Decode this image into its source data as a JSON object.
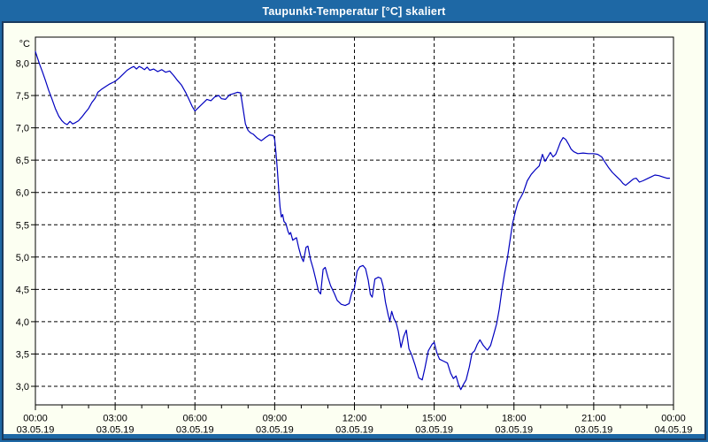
{
  "window": {
    "title": "Taupunkt-Temperatur [°C] skaliert",
    "titlebar_color": "#1e68a5",
    "frame_inner_color": "#1a3a5e",
    "background_color": "#fcfff2"
  },
  "chart_data": {
    "type": "line",
    "title": "Taupunkt-Temperatur [°C] skaliert",
    "y_unit_label": "°C",
    "line_color": "#0000bf",
    "plot_background": "#ffffff",
    "grid_style": "dashed",
    "grid_color": "#000000",
    "ylim": [
      2.71,
      8.4
    ],
    "xlim_hours": [
      0,
      24
    ],
    "y_ticks": [
      {
        "value": 8.0,
        "label": "8,0"
      },
      {
        "value": 7.5,
        "label": "7,5"
      },
      {
        "value": 7.0,
        "label": "7,0"
      },
      {
        "value": 6.5,
        "label": "6,5"
      },
      {
        "value": 6.0,
        "label": "6,0"
      },
      {
        "value": 5.5,
        "label": "5,5"
      },
      {
        "value": 5.0,
        "label": "5,0"
      },
      {
        "value": 4.5,
        "label": "4,5"
      },
      {
        "value": 4.0,
        "label": "4,0"
      },
      {
        "value": 3.5,
        "label": "3,5"
      },
      {
        "value": 3.0,
        "label": "3,0"
      }
    ],
    "grid_hours": [
      3,
      6,
      9,
      12,
      15,
      18,
      21
    ],
    "minor_tick_every_hours": 1,
    "x_ticks": [
      {
        "hour": 0,
        "time": "00:00",
        "date": "03.05.19"
      },
      {
        "hour": 3,
        "time": "03:00",
        "date": "03.05.19"
      },
      {
        "hour": 6,
        "time": "06:00",
        "date": "03.05.19"
      },
      {
        "hour": 9,
        "time": "09:00",
        "date": "03.05.19"
      },
      {
        "hour": 12,
        "time": "12:00",
        "date": "03.05.19"
      },
      {
        "hour": 15,
        "time": "15:00",
        "date": "03.05.19"
      },
      {
        "hour": 18,
        "time": "18:00",
        "date": "03.05.19"
      },
      {
        "hour": 21,
        "time": "21:00",
        "date": "03.05.19"
      },
      {
        "hour": 24,
        "time": "00:00",
        "date": "04.05.19"
      }
    ],
    "series": [
      {
        "name": "Taupunkt-Temperatur",
        "points": [
          [
            0,
            8.18
          ],
          [
            0.08,
            8.08
          ],
          [
            0.17,
            7.97
          ],
          [
            0.27,
            7.86
          ],
          [
            0.38,
            7.73
          ],
          [
            0.5,
            7.58
          ],
          [
            0.62,
            7.45
          ],
          [
            0.75,
            7.3
          ],
          [
            0.88,
            7.18
          ],
          [
            1,
            7.11
          ],
          [
            1.1,
            7.07
          ],
          [
            1.2,
            7.05
          ],
          [
            1.3,
            7.1
          ],
          [
            1.4,
            7.06
          ],
          [
            1.5,
            7.08
          ],
          [
            1.62,
            7.11
          ],
          [
            1.75,
            7.17
          ],
          [
            1.88,
            7.24
          ],
          [
            2,
            7.3
          ],
          [
            2.12,
            7.39
          ],
          [
            2.25,
            7.46
          ],
          [
            2.35,
            7.55
          ],
          [
            2.5,
            7.6
          ],
          [
            2.65,
            7.64
          ],
          [
            2.8,
            7.68
          ],
          [
            3,
            7.72
          ],
          [
            3.15,
            7.77
          ],
          [
            3.3,
            7.83
          ],
          [
            3.45,
            7.89
          ],
          [
            3.6,
            7.93
          ],
          [
            3.7,
            7.95
          ],
          [
            3.8,
            7.91
          ],
          [
            3.9,
            7.95
          ],
          [
            4,
            7.93
          ],
          [
            4.1,
            7.9
          ],
          [
            4.2,
            7.94
          ],
          [
            4.3,
            7.89
          ],
          [
            4.45,
            7.91
          ],
          [
            4.6,
            7.87
          ],
          [
            4.75,
            7.9
          ],
          [
            4.9,
            7.86
          ],
          [
            5.05,
            7.88
          ],
          [
            5.2,
            7.81
          ],
          [
            5.35,
            7.73
          ],
          [
            5.5,
            7.66
          ],
          [
            5.65,
            7.55
          ],
          [
            5.8,
            7.42
          ],
          [
            5.9,
            7.33
          ],
          [
            6,
            7.26
          ],
          [
            6.15,
            7.32
          ],
          [
            6.3,
            7.38
          ],
          [
            6.45,
            7.44
          ],
          [
            6.6,
            7.42
          ],
          [
            6.75,
            7.48
          ],
          [
            6.9,
            7.5
          ],
          [
            7,
            7.45
          ],
          [
            7.15,
            7.44
          ],
          [
            7.3,
            7.51
          ],
          [
            7.45,
            7.53
          ],
          [
            7.6,
            7.55
          ],
          [
            7.72,
            7.54
          ],
          [
            7.8,
            7.33
          ],
          [
            7.9,
            7.06
          ],
          [
            8,
            6.96
          ],
          [
            8.1,
            6.92
          ],
          [
            8.2,
            6.9
          ],
          [
            8.35,
            6.84
          ],
          [
            8.5,
            6.8
          ],
          [
            8.65,
            6.85
          ],
          [
            8.8,
            6.89
          ],
          [
            8.95,
            6.88
          ],
          [
            9,
            6.82
          ],
          [
            9.05,
            6.6
          ],
          [
            9.1,
            6.35
          ],
          [
            9.15,
            6.05
          ],
          [
            9.2,
            5.78
          ],
          [
            9.25,
            5.62
          ],
          [
            9.3,
            5.66
          ],
          [
            9.35,
            5.55
          ],
          [
            9.42,
            5.52
          ],
          [
            9.5,
            5.4
          ],
          [
            9.55,
            5.35
          ],
          [
            9.6,
            5.38
          ],
          [
            9.68,
            5.26
          ],
          [
            9.75,
            5.28
          ],
          [
            9.82,
            5.3
          ],
          [
            9.9,
            5.15
          ],
          [
            10,
            5
          ],
          [
            10.08,
            4.93
          ],
          [
            10.18,
            5.15
          ],
          [
            10.25,
            5.17
          ],
          [
            10.35,
            4.96
          ],
          [
            10.45,
            4.82
          ],
          [
            10.55,
            4.65
          ],
          [
            10.65,
            4.47
          ],
          [
            10.73,
            4.43
          ],
          [
            10.82,
            4.81
          ],
          [
            10.9,
            4.84
          ],
          [
            11,
            4.69
          ],
          [
            11.1,
            4.56
          ],
          [
            11.25,
            4.43
          ],
          [
            11.35,
            4.33
          ],
          [
            11.5,
            4.27
          ],
          [
            11.65,
            4.25
          ],
          [
            11.8,
            4.28
          ],
          [
            11.9,
            4.45
          ],
          [
            12,
            4.52
          ],
          [
            12.1,
            4.78
          ],
          [
            12.2,
            4.85
          ],
          [
            12.32,
            4.87
          ],
          [
            12.42,
            4.82
          ],
          [
            12.52,
            4.64
          ],
          [
            12.6,
            4.42
          ],
          [
            12.67,
            4.38
          ],
          [
            12.77,
            4.66
          ],
          [
            12.9,
            4.69
          ],
          [
            13,
            4.67
          ],
          [
            13.08,
            4.55
          ],
          [
            13.17,
            4.3
          ],
          [
            13.27,
            4.1
          ],
          [
            13.33,
            4.01
          ],
          [
            13.4,
            4.16
          ],
          [
            13.48,
            4.05
          ],
          [
            13.57,
            3.98
          ],
          [
            13.65,
            3.85
          ],
          [
            13.75,
            3.6
          ],
          [
            13.85,
            3.77
          ],
          [
            13.95,
            3.87
          ],
          [
            14.05,
            3.58
          ],
          [
            14.15,
            3.49
          ],
          [
            14.28,
            3.33
          ],
          [
            14.42,
            3.13
          ],
          [
            14.55,
            3.1
          ],
          [
            14.65,
            3.28
          ],
          [
            14.78,
            3.55
          ],
          [
            14.92,
            3.65
          ],
          [
            15,
            3.68
          ],
          [
            15.1,
            3.52
          ],
          [
            15.2,
            3.42
          ],
          [
            15.35,
            3.39
          ],
          [
            15.5,
            3.36
          ],
          [
            15.62,
            3.2
          ],
          [
            15.72,
            3.12
          ],
          [
            15.82,
            3.16
          ],
          [
            15.92,
            3.02
          ],
          [
            16,
            2.95
          ],
          [
            16.1,
            3.03
          ],
          [
            16.2,
            3.1
          ],
          [
            16.32,
            3.3
          ],
          [
            16.42,
            3.51
          ],
          [
            16.52,
            3.55
          ],
          [
            16.62,
            3.65
          ],
          [
            16.72,
            3.72
          ],
          [
            16.85,
            3.63
          ],
          [
            17,
            3.56
          ],
          [
            17.12,
            3.63
          ],
          [
            17.25,
            3.82
          ],
          [
            17.35,
            3.97
          ],
          [
            17.45,
            4.2
          ],
          [
            17.55,
            4.5
          ],
          [
            17.65,
            4.75
          ],
          [
            17.75,
            4.97
          ],
          [
            17.85,
            5.25
          ],
          [
            17.95,
            5.52
          ],
          [
            18.05,
            5.7
          ],
          [
            18.15,
            5.85
          ],
          [
            18.25,
            5.92
          ],
          [
            18.35,
            6
          ],
          [
            18.5,
            6.18
          ],
          [
            18.65,
            6.28
          ],
          [
            18.8,
            6.35
          ],
          [
            18.95,
            6.41
          ],
          [
            19.07,
            6.59
          ],
          [
            19.17,
            6.48
          ],
          [
            19.3,
            6.57
          ],
          [
            19.37,
            6.62
          ],
          [
            19.47,
            6.55
          ],
          [
            19.57,
            6.59
          ],
          [
            19.65,
            6.67
          ],
          [
            19.75,
            6.78
          ],
          [
            19.85,
            6.85
          ],
          [
            19.95,
            6.82
          ],
          [
            20.05,
            6.75
          ],
          [
            20.15,
            6.67
          ],
          [
            20.25,
            6.63
          ],
          [
            20.4,
            6.6
          ],
          [
            20.6,
            6.61
          ],
          [
            20.8,
            6.6
          ],
          [
            21,
            6.6
          ],
          [
            21.15,
            6.59
          ],
          [
            21.3,
            6.55
          ],
          [
            21.42,
            6.47
          ],
          [
            21.55,
            6.39
          ],
          [
            21.7,
            6.31
          ],
          [
            21.85,
            6.25
          ],
          [
            22,
            6.19
          ],
          [
            22.1,
            6.14
          ],
          [
            22.2,
            6.11
          ],
          [
            22.35,
            6.16
          ],
          [
            22.5,
            6.21
          ],
          [
            22.6,
            6.22
          ],
          [
            22.72,
            6.16
          ],
          [
            22.85,
            6.18
          ],
          [
            23,
            6.21
          ],
          [
            23.15,
            6.24
          ],
          [
            23.3,
            6.27
          ],
          [
            23.45,
            6.26
          ],
          [
            23.6,
            6.24
          ],
          [
            23.75,
            6.22
          ],
          [
            23.85,
            6.22
          ]
        ]
      }
    ]
  }
}
